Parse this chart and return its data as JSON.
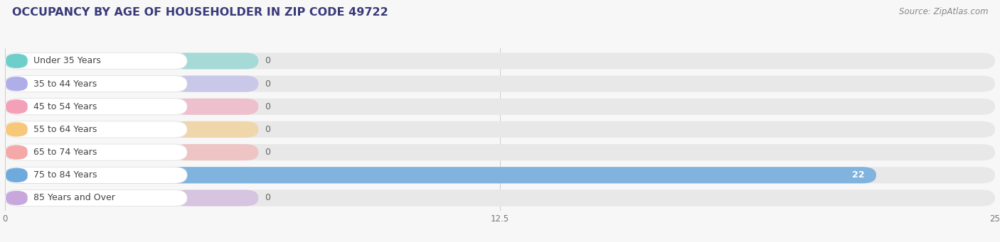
{
  "title": "OCCUPANCY BY AGE OF HOUSEHOLDER IN ZIP CODE 49722",
  "source": "Source: ZipAtlas.com",
  "categories": [
    "Under 35 Years",
    "35 to 44 Years",
    "45 to 54 Years",
    "55 to 64 Years",
    "65 to 74 Years",
    "75 to 84 Years",
    "85 Years and Over"
  ],
  "values": [
    0,
    0,
    0,
    0,
    0,
    22,
    0
  ],
  "bar_colors": [
    "#6ecfca",
    "#b0aee8",
    "#f4a0b8",
    "#f8c87a",
    "#f4a8a8",
    "#6eaadc",
    "#c8a8dc"
  ],
  "xlim": [
    0,
    25
  ],
  "xticks": [
    0,
    12.5,
    25
  ],
  "background_color": "#f7f7f7",
  "title_fontsize": 11.5,
  "source_fontsize": 8.5,
  "label_fontsize": 9,
  "value_fontsize": 9,
  "bar_height": 0.72,
  "value_label_color": "#ffffff",
  "zero_value_label_color": "#666666",
  "title_color": "#3a3a7a",
  "source_color": "#888888"
}
